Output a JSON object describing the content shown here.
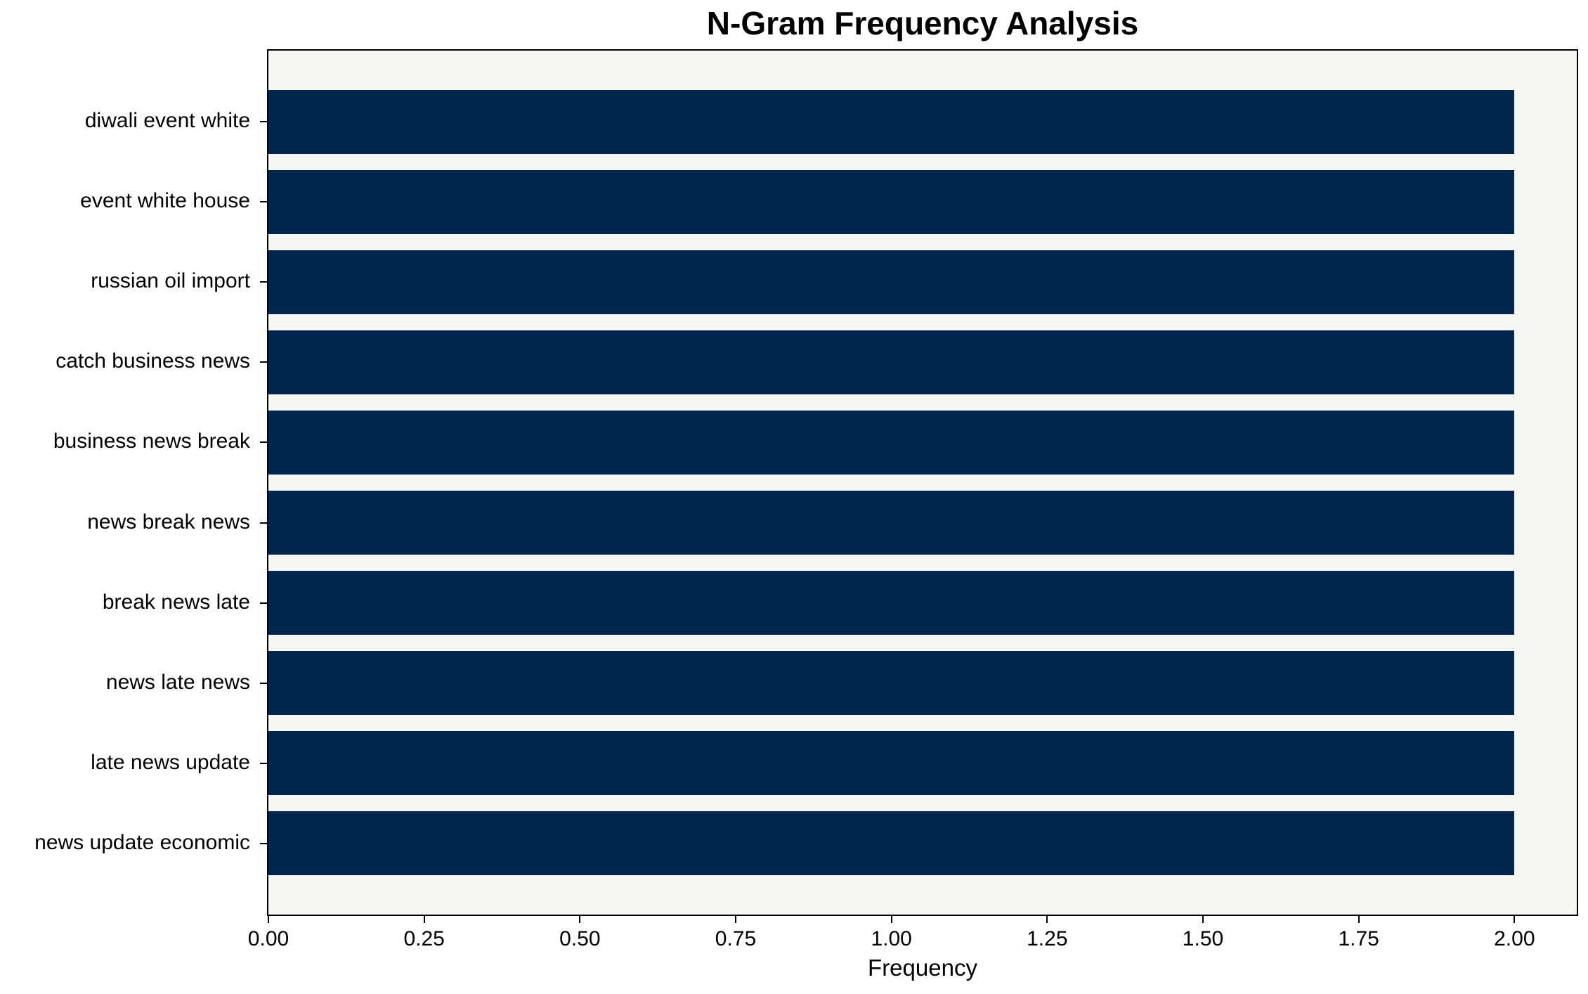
{
  "chart_data": {
    "type": "bar",
    "orientation": "horizontal",
    "title": "N-Gram Frequency Analysis",
    "xlabel": "Frequency",
    "ylabel": "",
    "categories": [
      "diwali event white",
      "event white house",
      "russian oil import",
      "catch business news",
      "business news break",
      "news break news",
      "break news late",
      "news late news",
      "late news update",
      "news update economic"
    ],
    "values": [
      2,
      2,
      2,
      2,
      2,
      2,
      2,
      2,
      2,
      2
    ],
    "xlim": [
      0,
      2.1
    ],
    "xticks": [
      0,
      0.25,
      0.5,
      0.75,
      1.0,
      1.25,
      1.5,
      1.75,
      2.0
    ],
    "xtick_decimals": 2,
    "grid": false,
    "legend": null,
    "bar_color": "#02254e",
    "plot_bg_color": "#f6f6f4",
    "figure_bg_color": "#ffffff",
    "spine_color": "#000000",
    "text_color": "#000000"
  }
}
